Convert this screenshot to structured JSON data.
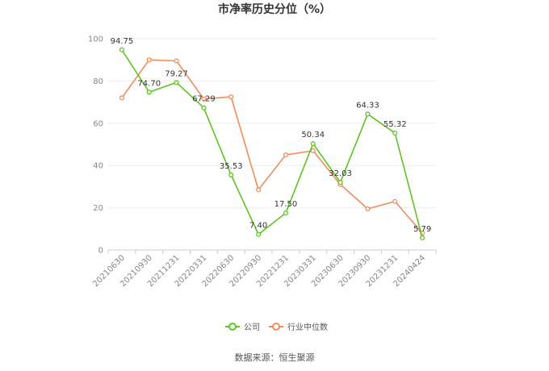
{
  "chart_data": {
    "type": "line",
    "title": "市净率历史分位（%）",
    "categories": [
      "20210630",
      "20210930",
      "20211231",
      "20220331",
      "20220630",
      "20220930",
      "20221231",
      "20230331",
      "20230630",
      "20230930",
      "20231231",
      "20240424"
    ],
    "ylim": [
      0,
      100
    ],
    "yticks": [
      "0",
      "20",
      "40",
      "60",
      "80",
      "100"
    ],
    "grid": true,
    "legend_position": "bottom",
    "series": [
      {
        "name": "公司",
        "color": "#5ec424",
        "values": [
          94.75,
          74.7,
          79.27,
          67.29,
          35.53,
          7.4,
          17.5,
          50.34,
          32.03,
          64.33,
          55.32,
          5.79
        ],
        "labels": [
          "94.75",
          "74.70",
          "79.27",
          "67.29",
          "35.53",
          "7.40",
          "17.50",
          "50.34",
          "32.03",
          "64.33",
          "55.32",
          "5.79"
        ]
      },
      {
        "name": "行业中位数",
        "color": "#f08c5a",
        "values": [
          72,
          90,
          89.5,
          71.5,
          72.5,
          28.5,
          45,
          47,
          31,
          19.5,
          23,
          8
        ]
      }
    ]
  },
  "source": "数据来源：恒生聚源"
}
